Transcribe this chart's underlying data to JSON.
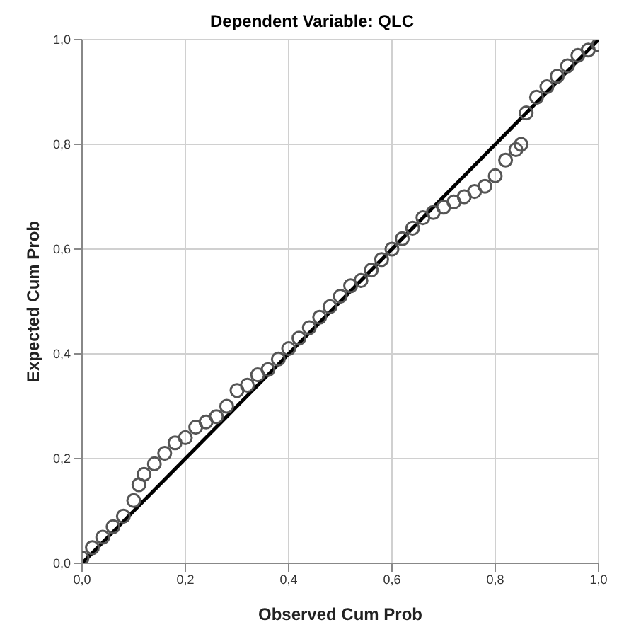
{
  "chart_data": {
    "type": "scatter",
    "title": "Dependent Variable: QLC",
    "xlabel": "Observed Cum Prob",
    "ylabel": "Expected Cum Prob",
    "series": [
      {
        "marker": "circle",
        "color": "#555555",
        "x": [
          0.0,
          0.02,
          0.04,
          0.06,
          0.08,
          0.1,
          0.11,
          0.12,
          0.14,
          0.16,
          0.18,
          0.2,
          0.22,
          0.24,
          0.26,
          0.28,
          0.3,
          0.32,
          0.34,
          0.36,
          0.38,
          0.4,
          0.42,
          0.44,
          0.46,
          0.48,
          0.5,
          0.52,
          0.54,
          0.56,
          0.58,
          0.6,
          0.62,
          0.64,
          0.66,
          0.68,
          0.7,
          0.72,
          0.74,
          0.76,
          0.78,
          0.8,
          0.82,
          0.84,
          0.85,
          0.86,
          0.88,
          0.9,
          0.92,
          0.94,
          0.96,
          0.98,
          1.0
        ],
        "values": [
          0.01,
          0.03,
          0.05,
          0.07,
          0.09,
          0.12,
          0.15,
          0.17,
          0.19,
          0.21,
          0.23,
          0.24,
          0.26,
          0.27,
          0.28,
          0.3,
          0.33,
          0.34,
          0.36,
          0.37,
          0.39,
          0.41,
          0.43,
          0.45,
          0.47,
          0.49,
          0.51,
          0.53,
          0.54,
          0.56,
          0.58,
          0.6,
          0.62,
          0.64,
          0.66,
          0.67,
          0.68,
          0.69,
          0.7,
          0.71,
          0.72,
          0.74,
          0.77,
          0.79,
          0.8,
          0.86,
          0.89,
          0.91,
          0.93,
          0.95,
          0.97,
          0.98,
          0.99
        ]
      },
      {
        "type": "line",
        "marker": "none",
        "color": "#000000",
        "x": [
          0,
          1
        ],
        "values": [
          0,
          1
        ]
      }
    ],
    "xlim": [
      0,
      1
    ],
    "ylim": [
      0,
      1
    ],
    "xticks": [
      {
        "value": 0,
        "label": "0,0"
      },
      {
        "value": 0.2,
        "label": "0,2"
      },
      {
        "value": 0.4,
        "label": "0,4"
      },
      {
        "value": 0.6,
        "label": "0,6"
      },
      {
        "value": 0.8,
        "label": "0,8"
      },
      {
        "value": 1,
        "label": "1,0"
      }
    ],
    "yticks": [
      {
        "value": 0,
        "label": "0,0"
      },
      {
        "value": 0.2,
        "label": "0,2"
      },
      {
        "value": 0.4,
        "label": "0,4"
      },
      {
        "value": 0.6,
        "label": "0,6"
      },
      {
        "value": 0.8,
        "label": "0,8"
      },
      {
        "value": 1,
        "label": "1,0"
      }
    ],
    "grid": true
  }
}
